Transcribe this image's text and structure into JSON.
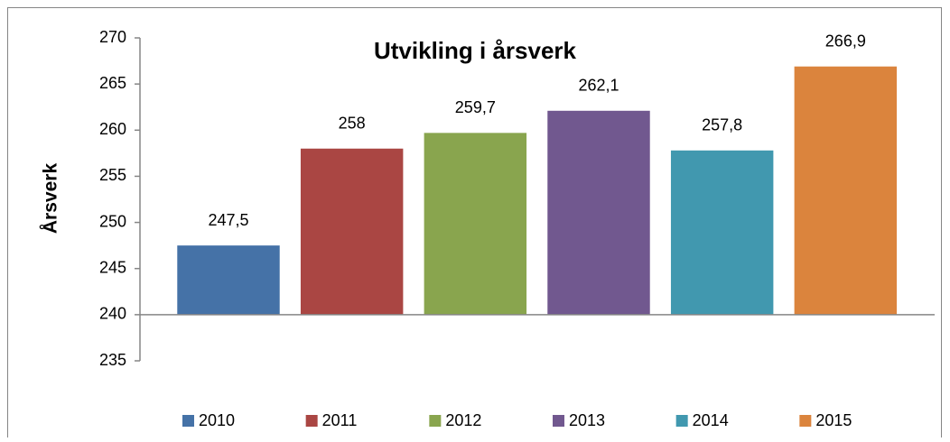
{
  "chart_data": {
    "type": "bar",
    "title": "Utvikling i årsverk",
    "y_label": "Årsverk",
    "ylim": [
      235,
      270
    ],
    "yticks": [
      235,
      240,
      245,
      250,
      255,
      260,
      265,
      270
    ],
    "baseline": 240,
    "legend": "bottom",
    "series": [
      {
        "name": "2010",
        "color": "#4572a7",
        "values": [
          247.5
        ],
        "value_labels": [
          "247,5"
        ]
      },
      {
        "name": "2011",
        "color": "#aa4643",
        "values": [
          258
        ],
        "value_labels": [
          "258"
        ]
      },
      {
        "name": "2012",
        "color": "#89a54e",
        "values": [
          259.7
        ],
        "value_labels": [
          "259,7"
        ]
      },
      {
        "name": "2013",
        "color": "#71588f",
        "values": [
          262.1
        ],
        "value_labels": [
          "262,1"
        ]
      },
      {
        "name": "2014",
        "color": "#4198af",
        "values": [
          257.8
        ],
        "value_labels": [
          "257,8"
        ]
      },
      {
        "name": "2015",
        "color": "#db843d",
        "values": [
          266.9
        ],
        "value_labels": [
          "266,9"
        ]
      }
    ]
  }
}
